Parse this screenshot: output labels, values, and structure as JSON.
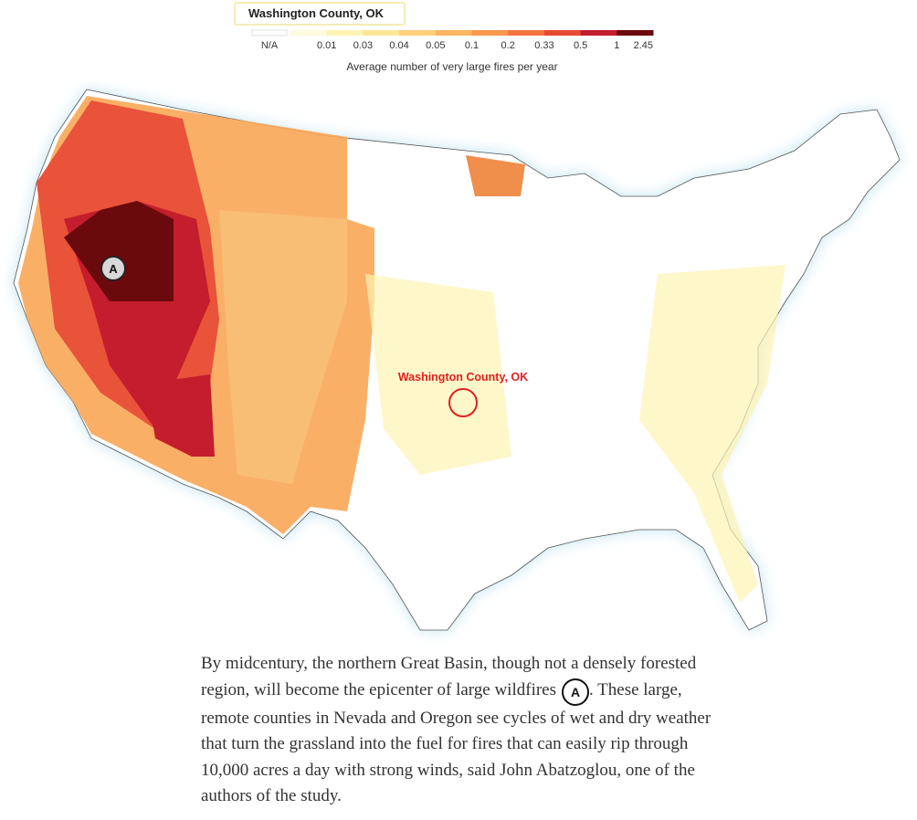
{
  "search": {
    "text": "Washington County, OK"
  },
  "legend": {
    "na": {
      "label": "N/A",
      "color": "#ffffff"
    },
    "items": [
      {
        "label": "0.01",
        "color": "#fffbdc"
      },
      {
        "label": "0.03",
        "color": "#fdf4b4"
      },
      {
        "label": "0.04",
        "color": "#fde597"
      },
      {
        "label": "0.05",
        "color": "#fdd07c"
      },
      {
        "label": "0.1",
        "color": "#fcb662"
      },
      {
        "label": "0.2",
        "color": "#f9984d"
      },
      {
        "label": "0.33",
        "color": "#f3743f"
      },
      {
        "label": "0.5",
        "color": "#e64a32"
      },
      {
        "label": "1",
        "color": "#c41d2d"
      },
      {
        "label": "2.45",
        "color": "#6b0a0c"
      }
    ],
    "title": "Average number of very large fires per year"
  },
  "map": {
    "marker": "A",
    "highlight_label": "Washington County, OK"
  },
  "paragraph": {
    "before": "By midcentury, the northern Great Basin, though not a densely forested region, will become the epicenter of large wildfires",
    "marker": "A",
    "after": ". These large, remote counties in Nevada and Oregon see cycles of wet and dry weather that turn the grassland into the fuel for fires that can easily rip through 10,000 acres a day with strong winds, said John Abatzoglou, one of the authors of the study."
  }
}
